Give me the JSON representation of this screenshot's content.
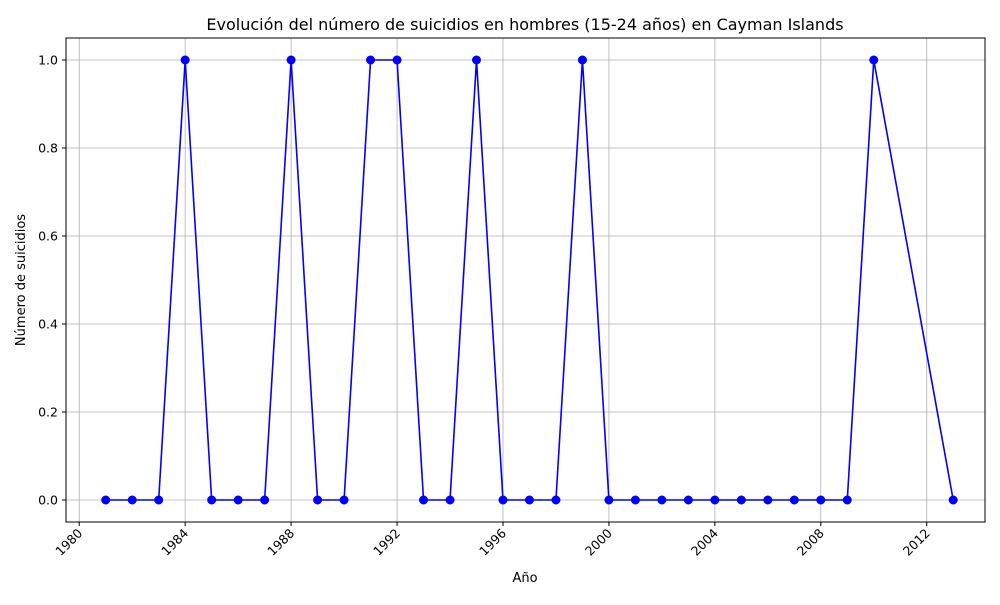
{
  "chart_data": {
    "type": "line",
    "title": "Evolución del número de suicidios en hombres (15-24 años) en Cayman Islands",
    "xlabel": "Año",
    "ylabel": "Número de suicidios",
    "xlim": [
      1979.5,
      2014.2
    ],
    "ylim": [
      -0.05,
      1.05
    ],
    "x_ticks": [
      1980,
      1984,
      1988,
      1992,
      1996,
      2000,
      2004,
      2008,
      2012
    ],
    "y_ticks": [
      0.0,
      0.2,
      0.4,
      0.6,
      0.8,
      1.0
    ],
    "y_tick_labels": [
      "0.0",
      "0.2",
      "0.4",
      "0.6",
      "0.8",
      "1.0"
    ],
    "x_tick_rotation": -45,
    "grid": true,
    "series": [
      {
        "color": "#0000ff",
        "marker": "circle",
        "x": [
          1981,
          1982,
          1983,
          1984,
          1985,
          1986,
          1987,
          1988,
          1989,
          1990,
          1991,
          1992,
          1993,
          1994,
          1995,
          1996,
          1997,
          1998,
          1999,
          2000,
          2001,
          2002,
          2003,
          2004,
          2005,
          2006,
          2007,
          2008,
          2009,
          2010,
          2013
        ],
        "values": [
          0,
          0,
          0,
          1,
          0,
          0,
          0,
          1,
          0,
          0,
          1,
          1,
          0,
          0,
          1,
          0,
          0,
          0,
          1,
          0,
          0,
          0,
          0,
          0,
          0,
          0,
          0,
          0,
          0,
          1,
          0
        ]
      }
    ]
  }
}
